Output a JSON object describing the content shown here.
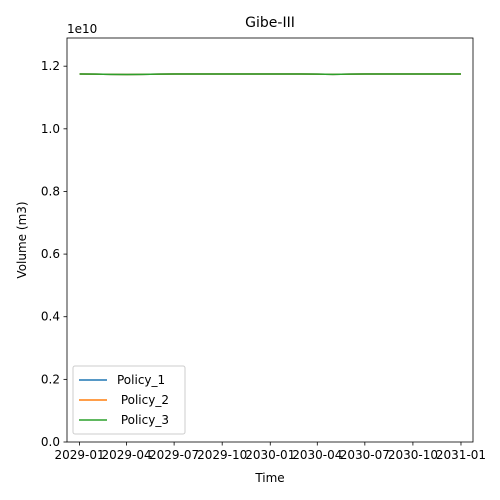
{
  "chart_data": {
    "type": "line",
    "title": "Gibe-III",
    "xlabel": "Time",
    "ylabel": "Volume (m3)",
    "y_scale_label": "1e10",
    "y_scale_factor": 10000000000,
    "ylim": [
      0,
      12900000000
    ],
    "yticks": [
      0,
      2000000000,
      4000000000,
      6000000000,
      8000000000,
      10000000000,
      12000000000
    ],
    "ytick_labels": [
      "0.0",
      "0.2",
      "0.4",
      "0.6",
      "0.8",
      "1.0",
      "1.2"
    ],
    "xlim": [
      "2028-12-08",
      "2031-01-24"
    ],
    "xticks": [
      "2029-01-01",
      "2029-04-01",
      "2029-07-01",
      "2029-10-01",
      "2030-01-01",
      "2030-04-01",
      "2030-07-01",
      "2030-10-01",
      "2031-01-01"
    ],
    "xtick_labels": [
      "2029-01",
      "2029-04",
      "2029-07",
      "2029-10",
      "2030-01",
      "2030-04",
      "2030-07",
      "2030-10",
      "2031-01"
    ],
    "legend_position": "lower-left",
    "x": [
      "2029-01-01",
      "2029-02-01",
      "2029-03-01",
      "2029-04-01",
      "2029-05-01",
      "2029-06-01",
      "2029-07-01",
      "2029-08-01",
      "2029-09-01",
      "2029-10-01",
      "2029-11-01",
      "2029-12-01",
      "2030-01-01",
      "2030-02-01",
      "2030-03-01",
      "2030-04-01",
      "2030-05-01",
      "2030-06-01",
      "2030-07-01",
      "2030-08-01",
      "2030-09-01",
      "2030-10-01",
      "2030-11-01",
      "2030-12-01",
      "2031-01-01"
    ],
    "series": [
      {
        "name": "Policy_1",
        "color": "#1f77b4",
        "values": [
          11750000000,
          11745000000,
          11740000000,
          11735000000,
          11740000000,
          11748000000,
          11752000000,
          11752000000,
          11750000000,
          11750000000,
          11752000000,
          11752000000,
          11752000000,
          11752000000,
          11750000000,
          11745000000,
          11740000000,
          11745000000,
          11750000000,
          11752000000,
          11752000000,
          11750000000,
          11750000000,
          11750000000,
          11750000000
        ]
      },
      {
        "name": " Policy_2",
        "color": "#ff7f0e",
        "values": [
          11750000000,
          11745000000,
          11740000000,
          11735000000,
          11740000000,
          11748000000,
          11752000000,
          11752000000,
          11750000000,
          11750000000,
          11752000000,
          11752000000,
          11752000000,
          11752000000,
          11750000000,
          11745000000,
          11740000000,
          11745000000,
          11750000000,
          11752000000,
          11752000000,
          11750000000,
          11750000000,
          11750000000,
          11750000000
        ]
      },
      {
        "name": " Policy_3",
        "color": "#2ca02c",
        "values": [
          11750000000,
          11745000000,
          11740000000,
          11735000000,
          11740000000,
          11748000000,
          11752000000,
          11752000000,
          11750000000,
          11750000000,
          11752000000,
          11752000000,
          11752000000,
          11752000000,
          11750000000,
          11745000000,
          11740000000,
          11745000000,
          11750000000,
          11752000000,
          11752000000,
          11750000000,
          11750000000,
          11750000000,
          11750000000
        ]
      }
    ]
  }
}
